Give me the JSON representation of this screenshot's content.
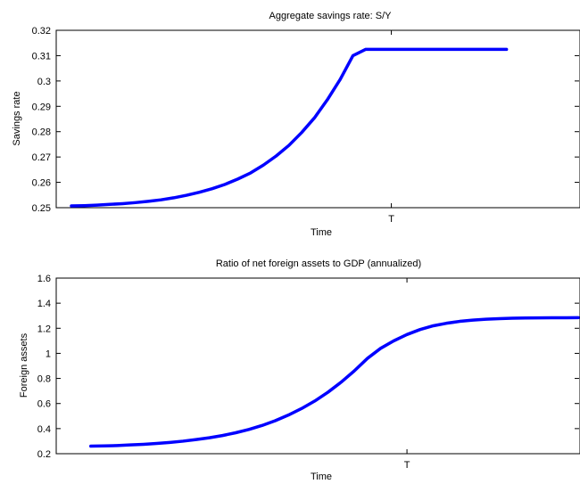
{
  "colors": {
    "series": "#0000ff",
    "axes": "#000000",
    "background": "#ffffff"
  },
  "chart_data": [
    {
      "type": "line",
      "title": "Aggregate savings rate: S/Y",
      "xlabel": "Time",
      "ylabel": "Savings rate",
      "x_ticks": [
        {
          "label": "T",
          "x": 25
        }
      ],
      "xlim": [
        0,
        35
      ],
      "ylim": [
        0.25,
        0.32
      ],
      "y_ticks": [
        "0.25",
        "0.26",
        "0.27",
        "0.28",
        "0.29",
        "0.3",
        "0.31",
        "0.32"
      ],
      "grid": false,
      "series": [
        {
          "x": [
            0,
            1,
            2,
            3,
            4,
            5,
            6,
            7,
            8,
            9,
            10,
            11,
            12,
            13,
            14,
            15,
            16,
            17,
            18,
            19,
            20,
            21,
            22,
            23,
            24,
            25,
            26,
            27,
            28,
            29,
            30,
            31,
            32,
            33,
            34
          ],
          "values": [
            0.2507,
            0.2508,
            0.251,
            0.2513,
            0.2516,
            0.252,
            0.2525,
            0.2531,
            0.2539,
            0.2549,
            0.2561,
            0.2575,
            0.2592,
            0.2613,
            0.2637,
            0.2668,
            0.2704,
            0.2746,
            0.2797,
            0.2855,
            0.2926,
            0.3006,
            0.31,
            0.3125,
            0.3125,
            0.3125,
            0.3125,
            0.3125,
            0.3125,
            0.3125,
            0.3125,
            0.3125,
            0.3125,
            0.3125,
            0.3125
          ]
        }
      ]
    },
    {
      "type": "line",
      "title": "Ratio of net foreign assets to GDP (annualized)",
      "xlabel": "Time",
      "ylabel": "Foreign assets",
      "x_ticks": [
        {
          "label": "T",
          "x": 25
        }
      ],
      "xlim": [
        0,
        38
      ],
      "ylim": [
        0.2,
        1.6
      ],
      "y_ticks": [
        "0.2",
        "0.4",
        "0.6",
        "0.8",
        "1",
        "1.2",
        "1.4",
        "1.6"
      ],
      "grid": false,
      "series": [
        {
          "x": [
            1,
            2,
            3,
            4,
            5,
            6,
            7,
            8,
            9,
            10,
            11,
            12,
            13,
            14,
            15,
            16,
            17,
            18,
            19,
            20,
            21,
            22,
            23,
            24,
            25,
            26,
            27,
            28,
            29,
            30,
            31,
            32,
            33,
            34,
            35,
            36,
            37,
            38
          ],
          "values": [
            0.26,
            0.262,
            0.265,
            0.27,
            0.275,
            0.282,
            0.29,
            0.3,
            0.313,
            0.327,
            0.345,
            0.367,
            0.393,
            0.425,
            0.463,
            0.508,
            0.56,
            0.62,
            0.69,
            0.77,
            0.86,
            0.96,
            1.04,
            1.1,
            1.15,
            1.19,
            1.22,
            1.24,
            1.255,
            1.265,
            1.272,
            1.277,
            1.28,
            1.282,
            1.283,
            1.284,
            1.284,
            1.285
          ]
        }
      ]
    }
  ]
}
